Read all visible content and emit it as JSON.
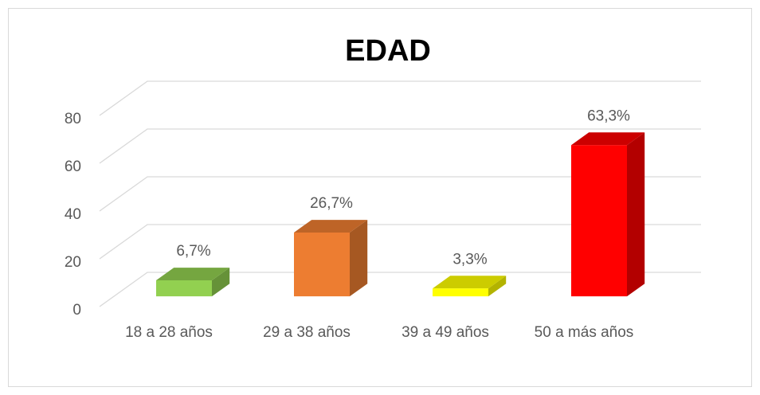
{
  "chart_data": {
    "type": "bar3d",
    "title": "EDAD",
    "categories": [
      "18 a 28 años",
      "29 a 38 años",
      "39 a 49 años",
      "50 a más años"
    ],
    "values": [
      6.7,
      26.7,
      3.3,
      63.3
    ],
    "value_labels": [
      "6,7%",
      "26,7%",
      "3,3%",
      "63,3%"
    ],
    "colors": [
      "#92d050",
      "#ed7d31",
      "#ffff00",
      "#ff0000"
    ],
    "ylim": [
      0,
      80
    ],
    "yticks": [
      0,
      20,
      40,
      60,
      80
    ],
    "grid": true
  }
}
